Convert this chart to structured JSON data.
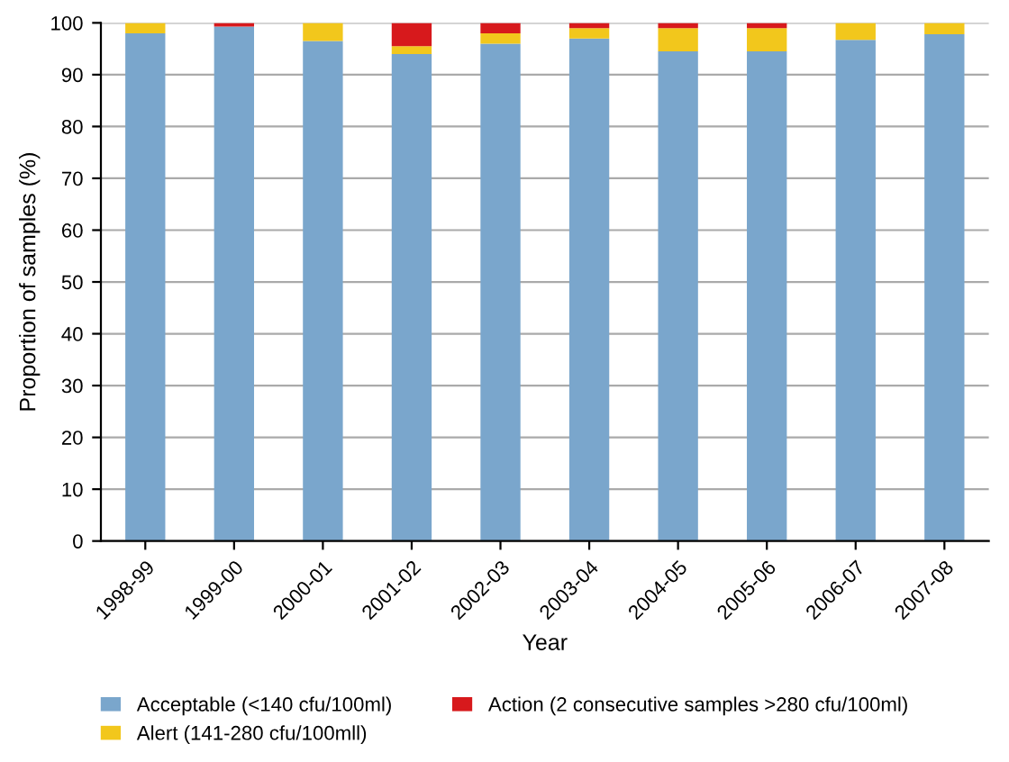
{
  "chart_data": {
    "type": "bar",
    "stacked": true,
    "xlabel": "Year",
    "ylabel": "Proportion of samples (%)",
    "categories": [
      "1998-99",
      "1999-00",
      "2000-01",
      "2001-02",
      "2002-03",
      "2003-04",
      "2004-05",
      "2005-06",
      "2006-07",
      "2007-08"
    ],
    "series": [
      {
        "name": "Acceptable (<140 cfu/100ml)",
        "color": "#7aa6cc",
        "values": [
          98,
          99.3,
          96.5,
          94,
          96,
          97,
          94.5,
          94.5,
          96.7,
          97.8
        ]
      },
      {
        "name": "Alert (141-280 cfu/100mll)",
        "color": "#f2c71c",
        "values": [
          2,
          0,
          3.5,
          1.5,
          2,
          2,
          4.5,
          4.5,
          3.3,
          2.2
        ]
      },
      {
        "name": "Action (2 consecutive samples >280 cfu/100ml)",
        "color": "#d7191c",
        "values": [
          0,
          0.7,
          0,
          4.5,
          2,
          1,
          1,
          1,
          0,
          0
        ]
      }
    ],
    "ylim": [
      0,
      100
    ],
    "yticks": [
      0,
      10,
      20,
      30,
      40,
      50,
      60,
      70,
      80,
      90,
      100
    ],
    "grid": "y",
    "legend": "bottom"
  }
}
